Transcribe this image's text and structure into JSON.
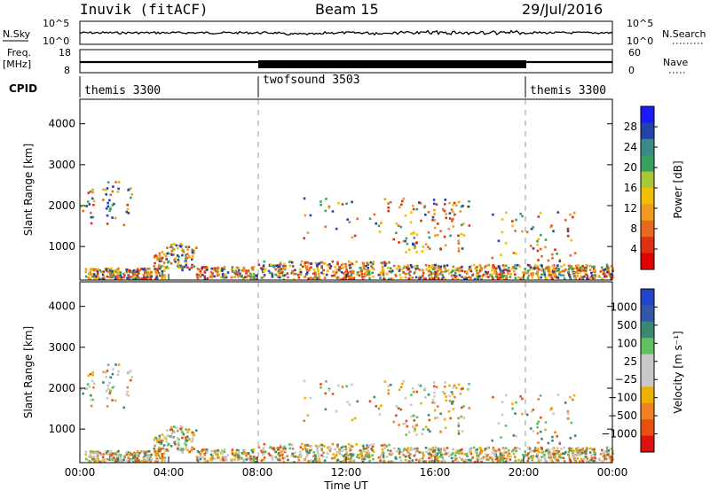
{
  "header": {
    "station": "Inuvik (fitACF)",
    "beam": "Beam 15",
    "date": "29/Jul/2016"
  },
  "noise_panel": {
    "left_label": "N.Sky",
    "right_label": "N.Search",
    "left_ticks": [
      "10^5",
      "10^0"
    ],
    "right_ticks": [
      "10^5",
      "10^0"
    ]
  },
  "freq_panel": {
    "left_label_1": "Freq.",
    "left_label_2": "[MHz]",
    "right_label": "Nave",
    "left_ticks": [
      "18",
      "8"
    ],
    "right_ticks": [
      "60",
      "0"
    ]
  },
  "cpid_panel": {
    "label": "CPID",
    "segments": [
      {
        "name": "themis 3300",
        "start_hour": 0
      },
      {
        "name": "twofsound 3503",
        "start_hour": 8
      },
      {
        "name": "themis 3300",
        "start_hour": 20
      }
    ]
  },
  "chart_data": [
    {
      "type": "heatmap",
      "name": "power",
      "ylabel": "Slant Range [km]",
      "yticks": [
        "1000",
        "2000",
        "3000",
        "4000"
      ],
      "ylim": [
        180,
        4600
      ],
      "xlim": [
        0,
        24
      ],
      "colorbar": {
        "label": "Power [dB]",
        "ticks": [
          "4",
          "8",
          "12",
          "16",
          "20",
          "24",
          "28"
        ],
        "colors": [
          "#1a1aff",
          "#2244aa",
          "#3a8a8a",
          "#3aa060",
          "#a8c838",
          "#f0c000",
          "#f09a20",
          "#e86820",
          "#e03010",
          "#e00000"
        ]
      }
    },
    {
      "type": "heatmap",
      "name": "velocity",
      "ylabel": "Slant Range [km]",
      "yticks": [
        "1000",
        "2000",
        "3000",
        "4000"
      ],
      "ylim": [
        180,
        4600
      ],
      "xlim": [
        0,
        24
      ],
      "xticks": [
        "00:00",
        "04:00",
        "08:00",
        "12:00",
        "16:00",
        "20:00",
        "00:00"
      ],
      "xlabel": "Time UT",
      "colorbar": {
        "label": "Velocity [m s⁻¹]",
        "ticks": [
          "1000",
          "500",
          "100",
          "25",
          "−25",
          "−100",
          "−500",
          "−1000"
        ],
        "colors": [
          "#2244cc",
          "#3355aa",
          "#3a8a70",
          "#60c060",
          "#c8c8c8",
          "#c8c8c8",
          "#f0b000",
          "#f08020",
          "#e85010",
          "#e01010"
        ]
      }
    }
  ]
}
